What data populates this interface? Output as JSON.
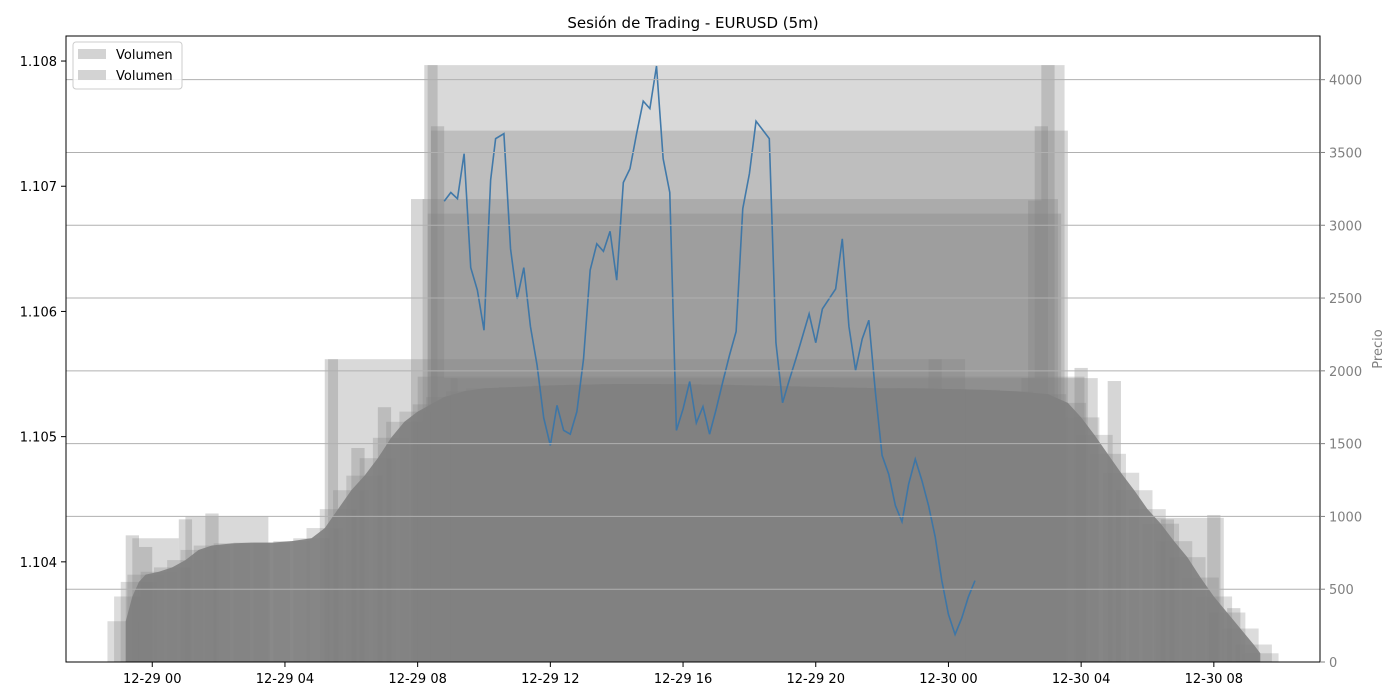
{
  "chart_data": {
    "type": "bar+line",
    "title": "Sesión de Trading - EURUSD (5m)",
    "xlabel": "",
    "y_left": {
      "label": "",
      "range": [
        1.1032,
        1.1082
      ],
      "ticks": [
        "1.104",
        "1.105",
        "1.106",
        "1.107",
        "1.108"
      ]
    },
    "y_right": {
      "label": "Precio",
      "range": [
        0,
        4300
      ],
      "ticks": [
        "0",
        "500",
        "1000",
        "1500",
        "2000",
        "2500",
        "3000",
        "3500",
        "4000"
      ]
    },
    "x_range_hours": [
      -2.6,
      35.2
    ],
    "x_ticks": [
      {
        "t": 0,
        "label": "12-29 00"
      },
      {
        "t": 4,
        "label": "12-29 04"
      },
      {
        "t": 8,
        "label": "12-29 08"
      },
      {
        "t": 12,
        "label": "12-29 12"
      },
      {
        "t": 16,
        "label": "12-29 16"
      },
      {
        "t": 20,
        "label": "12-29 20"
      },
      {
        "t": 24,
        "label": "12-30 00"
      },
      {
        "t": 28,
        "label": "12-30 04"
      },
      {
        "t": 32,
        "label": "12-30 08"
      }
    ],
    "grid": "horizontal (right axis)",
    "legend": {
      "position": "top-left",
      "entries": [
        "Volumen",
        "Volumen"
      ]
    },
    "colors": {
      "volume": "#808080",
      "price": "#3a75a8",
      "grid": "#b0b0b0"
    },
    "volume_series": {
      "name": "Volumen",
      "points": [
        [
          -0.8,
          280
        ],
        [
          -0.6,
          450
        ],
        [
          -0.4,
          550
        ],
        [
          -0.2,
          600
        ],
        [
          0.2,
          620
        ],
        [
          0.6,
          650
        ],
        [
          1.0,
          700
        ],
        [
          1.4,
          770
        ],
        [
          1.8,
          800
        ],
        [
          2.4,
          815
        ],
        [
          3.0,
          820
        ],
        [
          3.6,
          820
        ],
        [
          4.2,
          830
        ],
        [
          4.8,
          850
        ],
        [
          5.2,
          920
        ],
        [
          5.6,
          1050
        ],
        [
          6.0,
          1180
        ],
        [
          6.4,
          1280
        ],
        [
          6.8,
          1400
        ],
        [
          7.2,
          1540
        ],
        [
          7.6,
          1650
        ],
        [
          8.0,
          1720
        ],
        [
          8.4,
          1770
        ],
        [
          8.8,
          1820
        ],
        [
          9.4,
          1860
        ],
        [
          10.0,
          1880
        ],
        [
          11.0,
          1890
        ],
        [
          12.0,
          1900
        ],
        [
          13.0,
          1905
        ],
        [
          14.0,
          1910
        ],
        [
          15.0,
          1910
        ],
        [
          16.0,
          1908
        ],
        [
          17.0,
          1905
        ],
        [
          18.0,
          1900
        ],
        [
          19.0,
          1895
        ],
        [
          20.0,
          1890
        ],
        [
          21.0,
          1885
        ],
        [
          22.0,
          1880
        ],
        [
          23.0,
          1880
        ],
        [
          24.0,
          1875
        ],
        [
          25.0,
          1870
        ],
        [
          26.0,
          1860
        ],
        [
          27.0,
          1840
        ],
        [
          27.6,
          1780
        ],
        [
          28.0,
          1680
        ],
        [
          28.4,
          1560
        ],
        [
          28.8,
          1430
        ],
        [
          29.2,
          1300
        ],
        [
          29.6,
          1180
        ],
        [
          30.0,
          1050
        ],
        [
          30.4,
          950
        ],
        [
          30.8,
          830
        ],
        [
          31.2,
          720
        ],
        [
          31.6,
          580
        ],
        [
          32.0,
          450
        ],
        [
          32.4,
          340
        ],
        [
          32.8,
          230
        ],
        [
          33.2,
          120
        ],
        [
          33.4,
          60
        ]
      ],
      "spikes": [
        [
          -0.6,
          870
        ],
        [
          -0.2,
          790
        ],
        [
          1.0,
          980
        ],
        [
          1.8,
          1020
        ],
        [
          5.4,
          2080
        ],
        [
          6.2,
          1470
        ],
        [
          7.0,
          1750
        ],
        [
          8.0,
          3180
        ],
        [
          8.4,
          4100
        ],
        [
          8.6,
          3680
        ],
        [
          9.0,
          1950
        ],
        [
          23.6,
          2080
        ],
        [
          26.4,
          1950
        ],
        [
          26.6,
          3170
        ],
        [
          26.8,
          3680
        ],
        [
          27.0,
          4100
        ],
        [
          28.0,
          2020
        ],
        [
          29.0,
          1930
        ],
        [
          30.6,
          980
        ],
        [
          32.0,
          1010
        ],
        [
          32.6,
          370
        ]
      ]
    },
    "price_series": {
      "name": "",
      "points": [
        [
          8.8,
          1.10688
        ],
        [
          9.0,
          1.10695
        ],
        [
          9.2,
          1.1069
        ],
        [
          9.4,
          1.10726
        ],
        [
          9.6,
          1.10635
        ],
        [
          9.8,
          1.10617
        ],
        [
          10.0,
          1.10585
        ],
        [
          10.2,
          1.10705
        ],
        [
          10.35,
          1.10738
        ],
        [
          10.6,
          1.10742
        ],
        [
          10.8,
          1.1065
        ],
        [
          11.0,
          1.1061
        ],
        [
          11.2,
          1.10635
        ],
        [
          11.4,
          1.10588
        ],
        [
          11.6,
          1.10557
        ],
        [
          11.8,
          1.10515
        ],
        [
          12.0,
          1.10493
        ],
        [
          12.2,
          1.10525
        ],
        [
          12.4,
          1.10505
        ],
        [
          12.6,
          1.10502
        ],
        [
          12.8,
          1.1052
        ],
        [
          13.0,
          1.10562
        ],
        [
          13.2,
          1.10633
        ],
        [
          13.4,
          1.10654
        ],
        [
          13.6,
          1.10648
        ],
        [
          13.8,
          1.10664
        ],
        [
          14.0,
          1.10625
        ],
        [
          14.2,
          1.10703
        ],
        [
          14.4,
          1.10714
        ],
        [
          14.6,
          1.10742
        ],
        [
          14.8,
          1.10768
        ],
        [
          15.0,
          1.10762
        ],
        [
          15.2,
          1.10796
        ],
        [
          15.4,
          1.10722
        ],
        [
          15.6,
          1.10695
        ],
        [
          15.8,
          1.10505
        ],
        [
          16.0,
          1.10522
        ],
        [
          16.2,
          1.10544
        ],
        [
          16.4,
          1.10511
        ],
        [
          16.6,
          1.10524
        ],
        [
          16.8,
          1.10502
        ],
        [
          17.0,
          1.10522
        ],
        [
          17.2,
          1.10544
        ],
        [
          17.4,
          1.10565
        ],
        [
          17.6,
          1.10584
        ],
        [
          17.8,
          1.10682
        ],
        [
          18.0,
          1.1071
        ],
        [
          18.2,
          1.10752
        ],
        [
          18.4,
          1.10745
        ],
        [
          18.6,
          1.10738
        ],
        [
          18.8,
          1.10575
        ],
        [
          19.0,
          1.10527
        ],
        [
          19.2,
          1.10545
        ],
        [
          19.4,
          1.10562
        ],
        [
          19.6,
          1.1058
        ],
        [
          19.8,
          1.10598
        ],
        [
          20.0,
          1.10575
        ],
        [
          20.2,
          1.10602
        ],
        [
          20.4,
          1.1061
        ],
        [
          20.6,
          1.10618
        ],
        [
          20.8,
          1.10658
        ],
        [
          21.0,
          1.10588
        ],
        [
          21.2,
          1.10553
        ],
        [
          21.4,
          1.10578
        ],
        [
          21.6,
          1.10593
        ],
        [
          21.8,
          1.10535
        ],
        [
          22.0,
          1.10485
        ],
        [
          22.2,
          1.1047
        ],
        [
          22.4,
          1.10445
        ],
        [
          22.6,
          1.10432
        ],
        [
          22.8,
          1.10462
        ],
        [
          23.0,
          1.10482
        ],
        [
          23.2,
          1.10465
        ],
        [
          23.4,
          1.10445
        ],
        [
          23.6,
          1.1042
        ],
        [
          23.8,
          1.10385
        ],
        [
          24.0,
          1.10358
        ],
        [
          24.2,
          1.10342
        ],
        [
          24.4,
          1.10355
        ],
        [
          24.6,
          1.10372
        ],
        [
          24.8,
          1.10385
        ]
      ]
    }
  }
}
